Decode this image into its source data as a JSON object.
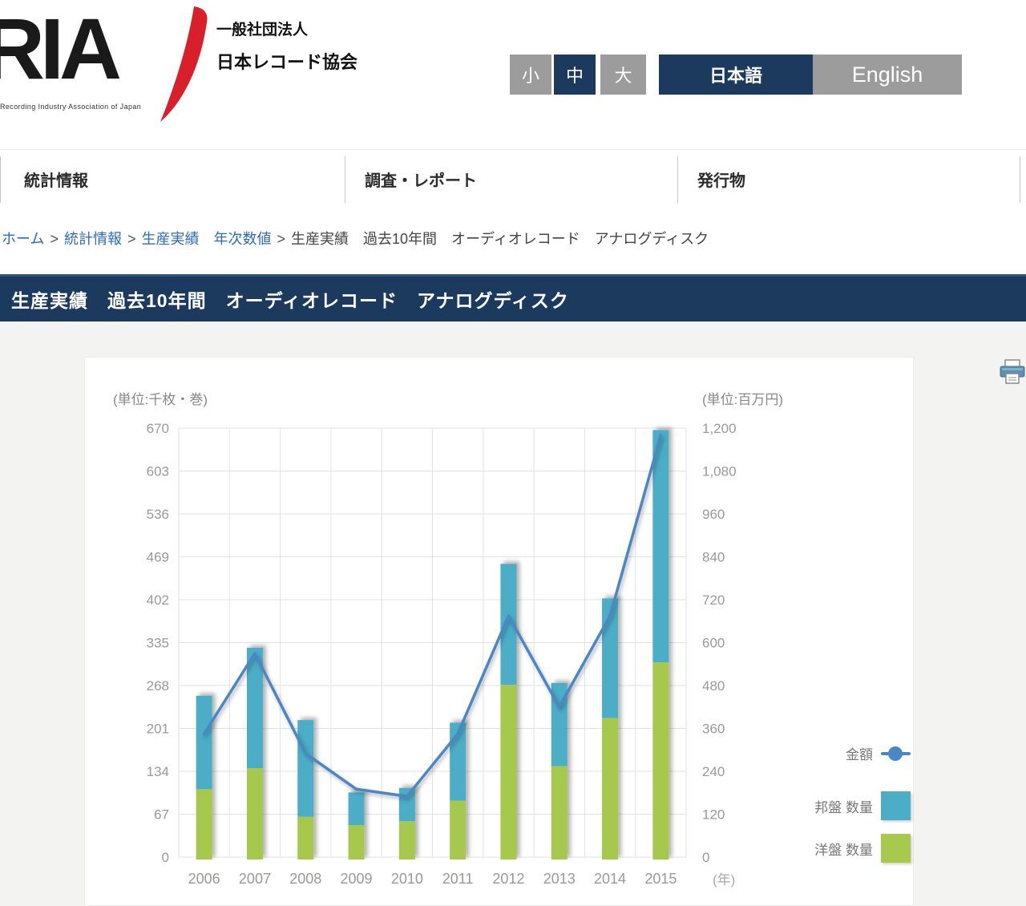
{
  "header": {
    "logo_text": "RIA",
    "logo_tagline": "Recording Industry Association of Japan",
    "org_line1": "一般社団法人",
    "org_line2": "日本レコード協会",
    "font_size_buttons": [
      {
        "label": "小",
        "active": false
      },
      {
        "label": "中",
        "active": true
      },
      {
        "label": "大",
        "active": false
      }
    ],
    "lang_buttons": [
      {
        "label": "日本語",
        "active": true
      },
      {
        "label": "English",
        "active": false
      }
    ]
  },
  "nav": {
    "items": [
      "統計情報",
      "調査・レポート",
      "発行物"
    ]
  },
  "breadcrumb": {
    "separator": ">",
    "links": [
      "ホーム",
      "統計情報",
      "生産実績　年次数値"
    ],
    "current": "生産実績　過去10年間　オーディオレコード　アナログディスク"
  },
  "page_title": "生産実績　過去10年間　オーディオレコード　アナログディスク",
  "colors": {
    "navy": "#1b3a5e",
    "button_gray": "#9c9c9c",
    "logo_red": "#d7202a",
    "bar_domestic_teal": "#4badc6",
    "bar_foreign_green": "#a6c94e",
    "line_blue": "#4b86c6",
    "grid_gray": "#e2e2e0",
    "tick_gray": "#999999"
  },
  "chart_data": {
    "type": "bar",
    "subtype": "stacked-bars-with-line-overlay",
    "title": "生産実績　過去10年間　オーディオレコード　アナログディスク",
    "categories": [
      "2006",
      "2007",
      "2008",
      "2009",
      "2010",
      "2011",
      "2012",
      "2013",
      "2014",
      "2015"
    ],
    "series": [
      {
        "name": "洋盤 数量",
        "stack_position": "bottom",
        "color": "#a6c94e",
        "values": [
          106,
          139,
          63,
          50,
          56,
          88,
          269,
          142,
          217,
          304
        ]
      },
      {
        "name": "邦盤 数量",
        "stack_position": "top",
        "color": "#4badc6",
        "values": [
          146,
          188,
          151,
          51,
          52,
          122,
          189,
          130,
          187,
          363
        ]
      }
    ],
    "totals_quantity": [
      252,
      327,
      214,
      101,
      108,
      210,
      458,
      272,
      404,
      667
    ],
    "line_series": {
      "name": "金額",
      "axis": "right",
      "color": "#4b86c6",
      "values": [
        345,
        570,
        290,
        190,
        170,
        345,
        675,
        420,
        675,
        1180
      ]
    },
    "left_axis": {
      "unit": "(単位:千枚・巻)",
      "min": 0,
      "max": 670,
      "ticks": [
        0,
        67,
        134,
        201,
        268,
        335,
        402,
        469,
        536,
        603,
        670
      ],
      "tick_labels": [
        "0",
        "67",
        "134",
        "201",
        "268",
        "335",
        "402",
        "469",
        "536",
        "603",
        "670"
      ]
    },
    "right_axis": {
      "unit": "(単位:百万円)",
      "min": 0,
      "max": 1200,
      "ticks": [
        0,
        120,
        240,
        360,
        480,
        600,
        720,
        840,
        960,
        1080,
        1200
      ],
      "tick_labels": [
        "0",
        "120",
        "240",
        "360",
        "480",
        "600",
        "720",
        "840",
        "960",
        "1,080",
        "1,200"
      ]
    },
    "x_axis_unit": "(年)",
    "legend_position": "right",
    "grid": true
  }
}
